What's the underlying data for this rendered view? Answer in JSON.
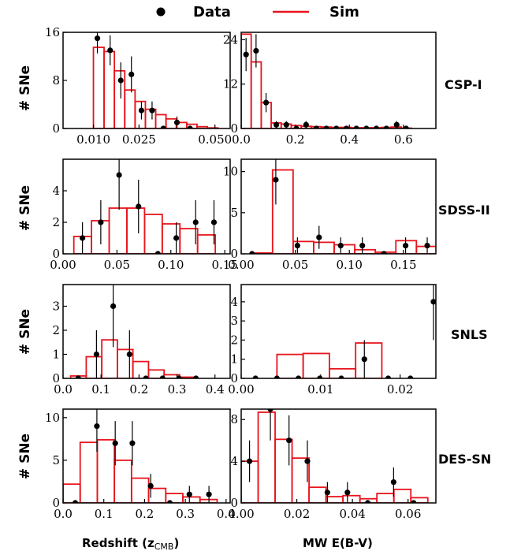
{
  "legend": {
    "data_label": "Data",
    "sim_label": "Sim",
    "data_color": "#000000",
    "sim_color": "#e8141c"
  },
  "axis_labels": {
    "ylabel": "# SNe",
    "xlabel_left": "Redshift (z",
    "xlabel_left_sub": "CMB",
    "xlabel_left_end": ")",
    "xlabel_right": "MW E(B-V)"
  },
  "rows": [
    "CSP-I",
    "SDSS-II",
    "SNLS",
    "DES-SN"
  ],
  "chart_data": [
    {
      "type": "bar",
      "sample": "CSP-I",
      "quantity": "Redshift",
      "xlim": [
        0.0,
        0.055
      ],
      "ylim": [
        0,
        16
      ],
      "xticks": [
        0.01,
        0.025,
        0.05
      ],
      "xtick_labels": [
        "0.010",
        "0.025",
        "0.050"
      ],
      "yticks": [
        0,
        8,
        16
      ],
      "ytick_labels": [
        "0",
        "8",
        "16"
      ],
      "bin_edges": [
        0.01,
        0.0135,
        0.0169,
        0.0203,
        0.0237,
        0.0271,
        0.0305,
        0.0339,
        0.0373,
        0.0407,
        0.0441,
        0.0475,
        0.051
      ],
      "sim_values": [
        13.5,
        12.8,
        9.6,
        6.4,
        4.5,
        3.2,
        2.3,
        1.6,
        1.0,
        0.7,
        0.3,
        0.1
      ],
      "data_points": [
        {
          "x": 0.0113,
          "y": 15,
          "err": 2.5
        },
        {
          "x": 0.0155,
          "y": 13,
          "err": 2.5
        },
        {
          "x": 0.019,
          "y": 8,
          "err": 3
        },
        {
          "x": 0.0225,
          "y": 9,
          "err": 3
        },
        {
          "x": 0.0258,
          "y": 3,
          "err": 1.5
        },
        {
          "x": 0.0293,
          "y": 3,
          "err": 1.5
        },
        {
          "x": 0.033,
          "y": 0,
          "err": 0
        },
        {
          "x": 0.0375,
          "y": 1,
          "err": 1
        },
        {
          "x": 0.0418,
          "y": 0,
          "err": 0
        }
      ]
    },
    {
      "type": "bar",
      "sample": "CSP-I",
      "quantity": "MW E(B-V)",
      "xlim": [
        0.0,
        0.72
      ],
      "ylim": [
        0,
        26
      ],
      "xticks": [
        0.0,
        0.2,
        0.4,
        0.6
      ],
      "xtick_labels": [
        "0.0",
        "0.2",
        "0.4",
        "0.6"
      ],
      "yticks": [
        0,
        12,
        24
      ],
      "ytick_labels": [
        "0",
        "12",
        "24"
      ],
      "bin_edges": [
        0.0,
        0.037,
        0.074,
        0.111,
        0.148,
        0.185,
        0.222,
        0.259,
        0.296,
        0.333,
        0.37,
        0.407,
        0.444,
        0.481,
        0.518,
        0.555,
        0.592,
        0.629
      ],
      "sim_values": [
        25.5,
        18,
        7,
        1.5,
        1.2,
        0.8,
        0.6,
        0.5,
        0.4,
        0.3,
        0.3,
        0.2,
        0.2,
        0.2,
        0.3,
        0.4,
        0.1
      ],
      "data_points": [
        {
          "x": 0.018,
          "y": 20,
          "err": 4.5
        },
        {
          "x": 0.055,
          "y": 21,
          "err": 4.5
        },
        {
          "x": 0.092,
          "y": 7,
          "err": 2.6
        },
        {
          "x": 0.13,
          "y": 1,
          "err": 1
        },
        {
          "x": 0.167,
          "y": 1,
          "err": 1
        },
        {
          "x": 0.204,
          "y": 0,
          "err": 0
        },
        {
          "x": 0.24,
          "y": 1,
          "err": 1
        },
        {
          "x": 0.278,
          "y": 0,
          "err": 0
        },
        {
          "x": 0.315,
          "y": 0,
          "err": 0
        },
        {
          "x": 0.352,
          "y": 0,
          "err": 0
        },
        {
          "x": 0.389,
          "y": 0,
          "err": 0
        },
        {
          "x": 0.426,
          "y": 0,
          "err": 0
        },
        {
          "x": 0.463,
          "y": 0,
          "err": 0
        },
        {
          "x": 0.5,
          "y": 0,
          "err": 0
        },
        {
          "x": 0.537,
          "y": 0,
          "err": 0
        },
        {
          "x": 0.575,
          "y": 1,
          "err": 1
        },
        {
          "x": 0.61,
          "y": 0,
          "err": 0
        }
      ]
    },
    {
      "type": "bar",
      "sample": "SDSS-II",
      "quantity": "Redshift",
      "xlim": [
        0.0,
        0.155
      ],
      "ylim": [
        0,
        6
      ],
      "xticks": [
        0.0,
        0.05,
        0.1,
        0.15
      ],
      "xtick_labels": [
        "0.00",
        "0.05",
        "0.10",
        "0.15"
      ],
      "yticks": [
        0,
        2,
        4
      ],
      "ytick_labels": [
        "0",
        "2",
        "4"
      ],
      "bin_edges": [
        0.01,
        0.0264,
        0.0428,
        0.0592,
        0.0756,
        0.092,
        0.1084,
        0.1248,
        0.1412
      ],
      "sim_values": [
        1.1,
        2.1,
        2.9,
        2.9,
        2.5,
        1.9,
        1.6,
        1.2
      ],
      "data_points": [
        {
          "x": 0.018,
          "y": 1,
          "err": 1
        },
        {
          "x": 0.035,
          "y": 2,
          "err": 1.4
        },
        {
          "x": 0.052,
          "y": 5,
          "err": 2.2
        },
        {
          "x": 0.07,
          "y": 3,
          "err": 1.7
        },
        {
          "x": 0.088,
          "y": 0,
          "err": 0
        },
        {
          "x": 0.105,
          "y": 1,
          "err": 1
        },
        {
          "x": 0.123,
          "y": 2,
          "err": 1.4
        },
        {
          "x": 0.14,
          "y": 2,
          "err": 1.4
        }
      ]
    },
    {
      "type": "bar",
      "sample": "SDSS-II",
      "quantity": "MW E(B-V)",
      "xlim": [
        0.0,
        0.18
      ],
      "ylim": [
        0,
        11.5
      ],
      "xticks": [
        0.0,
        0.05,
        0.1,
        0.15
      ],
      "xtick_labels": [
        "0.00",
        "0.05",
        "0.10",
        "0.15"
      ],
      "yticks": [
        0,
        5,
        10
      ],
      "ytick_labels": [
        "0",
        "5",
        "10"
      ],
      "bin_edges": [
        0.01,
        0.029,
        0.048,
        0.067,
        0.086,
        0.105,
        0.124,
        0.143,
        0.162,
        0.181
      ],
      "sim_values": [
        0.1,
        10.2,
        1.5,
        1.4,
        1.1,
        0.5,
        0.2,
        1.6,
        0.9
      ],
      "data_points": [
        {
          "x": 0.01,
          "y": 0,
          "err": 0
        },
        {
          "x": 0.032,
          "y": 9,
          "err": 3
        },
        {
          "x": 0.052,
          "y": 1,
          "err": 1
        },
        {
          "x": 0.072,
          "y": 2,
          "err": 1.4
        },
        {
          "x": 0.092,
          "y": 1,
          "err": 1
        },
        {
          "x": 0.112,
          "y": 1,
          "err": 1
        },
        {
          "x": 0.132,
          "y": 0,
          "err": 0
        },
        {
          "x": 0.152,
          "y": 1,
          "err": 1
        },
        {
          "x": 0.172,
          "y": 1,
          "err": 1
        }
      ]
    },
    {
      "type": "bar",
      "sample": "SNLS",
      "quantity": "Redshift",
      "xlim": [
        0.0,
        0.44
      ],
      "ylim": [
        0,
        3.9
      ],
      "xticks": [
        0.0,
        0.1,
        0.2,
        0.3,
        0.4
      ],
      "xtick_labels": [
        "0.0",
        "0.1",
        "0.2",
        "0.3",
        "0.4"
      ],
      "yticks": [
        0,
        1,
        2,
        3
      ],
      "ytick_labels": [
        "0",
        "1",
        "2",
        "3"
      ],
      "bin_edges": [
        0.02,
        0.061,
        0.102,
        0.143,
        0.184,
        0.225,
        0.266,
        0.307,
        0.348
      ],
      "sim_values": [
        0.1,
        0.9,
        1.6,
        1.2,
        0.7,
        0.35,
        0.15,
        0.05
      ],
      "data_points": [
        {
          "x": 0.04,
          "y": 0,
          "err": 0
        },
        {
          "x": 0.088,
          "y": 1,
          "err": 1
        },
        {
          "x": 0.132,
          "y": 3,
          "err": 1.7
        },
        {
          "x": 0.175,
          "y": 1,
          "err": 1
        },
        {
          "x": 0.218,
          "y": 0,
          "err": 0
        },
        {
          "x": 0.262,
          "y": 0,
          "err": 0
        },
        {
          "x": 0.305,
          "y": 0,
          "err": 0
        },
        {
          "x": 0.35,
          "y": 0,
          "err": 0
        }
      ]
    },
    {
      "type": "bar",
      "sample": "SNLS",
      "quantity": "MW E(B-V)",
      "xlim": [
        0.0,
        0.0245
      ],
      "ylim": [
        0,
        4.9
      ],
      "xticks": [
        0.0,
        0.01,
        0.02
      ],
      "xtick_labels": [
        "0.00",
        "0.01",
        "0.02"
      ],
      "yticks": [
        0,
        1,
        2,
        3,
        4
      ],
      "ytick_labels": [
        "0",
        "1",
        "2",
        "3",
        "4"
      ],
      "bin_edges": [
        0.0045,
        0.0078,
        0.0111,
        0.0144,
        0.0177
      ],
      "sim_values": [
        1.25,
        1.3,
        0.5,
        1.85
      ],
      "data_points": [
        {
          "x": 0.0018,
          "y": 0,
          "err": 0
        },
        {
          "x": 0.0045,
          "y": 0,
          "err": 0
        },
        {
          "x": 0.0072,
          "y": 0,
          "err": 0
        },
        {
          "x": 0.0099,
          "y": 0,
          "err": 0
        },
        {
          "x": 0.0126,
          "y": 0,
          "err": 0
        },
        {
          "x": 0.0155,
          "y": 1,
          "err": 1
        },
        {
          "x": 0.0185,
          "y": 0,
          "err": 0
        },
        {
          "x": 0.0213,
          "y": 0,
          "err": 0
        },
        {
          "x": 0.0242,
          "y": 4,
          "err": 2
        }
      ]
    },
    {
      "type": "bar",
      "sample": "DES-SN",
      "quantity": "Redshift",
      "xlim": [
        0.0,
        0.41
      ],
      "ylim": [
        0,
        11
      ],
      "xticks": [
        0.0,
        0.1,
        0.2,
        0.3,
        0.4
      ],
      "xtick_labels": [
        "0.0",
        "0.1",
        "0.2",
        "0.3",
        "0.4"
      ],
      "yticks": [
        0,
        5,
        10
      ],
      "ytick_labels": [
        "0",
        "5",
        "10"
      ],
      "bin_edges": [
        0.0,
        0.042,
        0.084,
        0.126,
        0.168,
        0.21,
        0.252,
        0.294,
        0.336,
        0.378
      ],
      "sim_values": [
        2.2,
        7.1,
        7.4,
        5.0,
        2.9,
        1.7,
        1.1,
        0.7,
        0.4
      ],
      "data_points": [
        {
          "x": 0.03,
          "y": 0,
          "err": 0
        },
        {
          "x": 0.083,
          "y": 9,
          "err": 3
        },
        {
          "x": 0.128,
          "y": 7,
          "err": 2.6
        },
        {
          "x": 0.17,
          "y": 7,
          "err": 2.6
        },
        {
          "x": 0.215,
          "y": 2,
          "err": 1.4
        },
        {
          "x": 0.262,
          "y": 0,
          "err": 0
        },
        {
          "x": 0.31,
          "y": 1,
          "err": 1
        },
        {
          "x": 0.358,
          "y": 1,
          "err": 1
        }
      ]
    },
    {
      "type": "bar",
      "sample": "DES-SN",
      "quantity": "MW E(B-V)",
      "xlim": [
        0.0,
        0.07
      ],
      "ylim": [
        0,
        9
      ],
      "xticks": [
        0.0,
        0.02,
        0.04,
        0.06
      ],
      "xtick_labels": [
        "0.00",
        "0.02",
        "0.04",
        "0.06"
      ],
      "yticks": [
        0,
        4,
        8
      ],
      "ytick_labels": [
        "0",
        "4",
        "8"
      ],
      "bin_edges": [
        0.0,
        0.0061,
        0.0122,
        0.0183,
        0.0244,
        0.0305,
        0.0366,
        0.0427,
        0.0488,
        0.0549,
        0.061,
        0.0671
      ],
      "sim_values": [
        4.0,
        8.7,
        6.1,
        4.3,
        1.5,
        0.6,
        0.7,
        0.4,
        0.9,
        1.3,
        0.5
      ],
      "data_points": [
        {
          "x": 0.003,
          "y": 4,
          "err": 2
        },
        {
          "x": 0.0105,
          "y": 9,
          "err": 3
        },
        {
          "x": 0.0172,
          "y": 6,
          "err": 2.4
        },
        {
          "x": 0.0238,
          "y": 4,
          "err": 2
        },
        {
          "x": 0.031,
          "y": 1,
          "err": 1
        },
        {
          "x": 0.0382,
          "y": 1,
          "err": 1
        },
        {
          "x": 0.0455,
          "y": 0,
          "err": 0
        },
        {
          "x": 0.0548,
          "y": 2,
          "err": 1.4
        },
        {
          "x": 0.062,
          "y": 0,
          "err": 0
        }
      ]
    }
  ]
}
